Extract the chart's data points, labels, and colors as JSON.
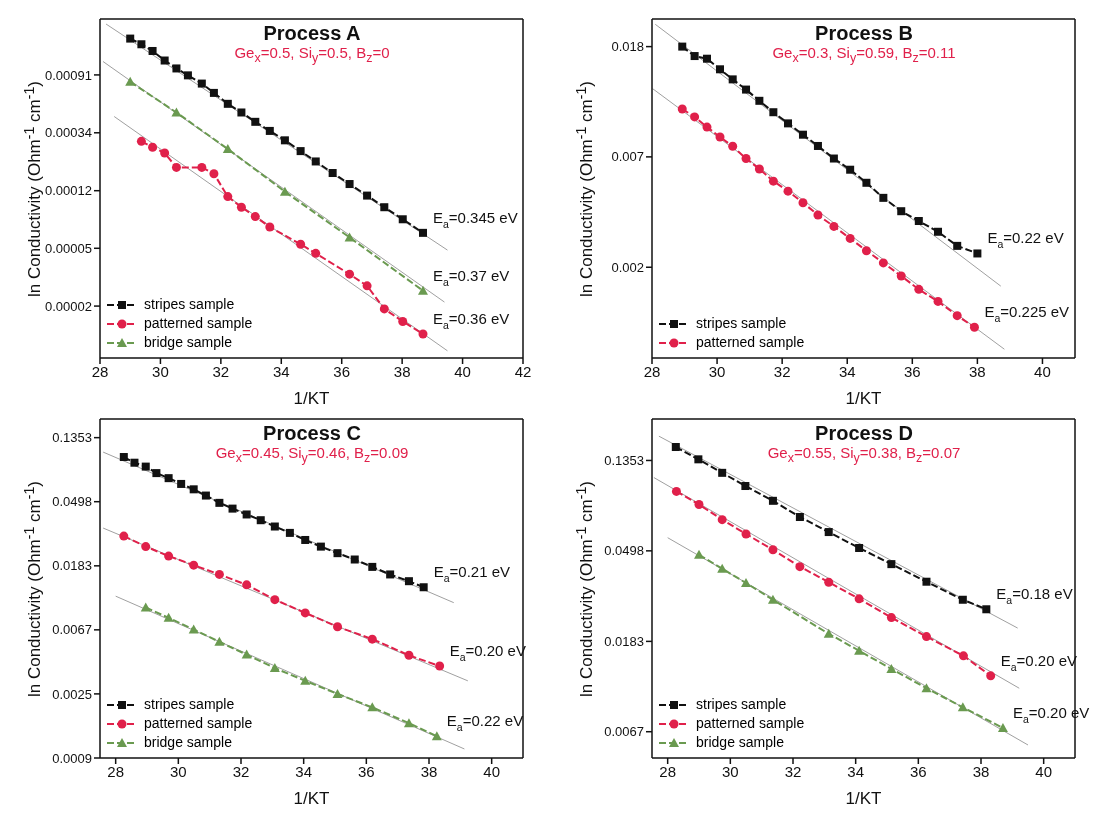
{
  "chart_data": [
    {
      "type": "line",
      "title": "Process  A",
      "subtitle": "Ge$_{x}$=0.5, Si$_{y}$=0.5, B$_{z}$=0",
      "xlabel": "1/KT",
      "ylabel": "ln Conductivity   (Ohm$^{-1}$ cm$^{-1}$)",
      "log": true,
      "xlim": [
        28,
        42
      ],
      "xticks": [
        28,
        30,
        32,
        34,
        36,
        38,
        40,
        42
      ],
      "ylim": [
        6.8e-06,
        0.0024
      ],
      "yticks": [
        {
          "value": 0.000912,
          "label": "0.00091"
        },
        {
          "value": 0.000335,
          "label": "0.00034"
        },
        {
          "value": 0.000123,
          "label": "0.00012"
        },
        {
          "value": 4.54e-05,
          "label": "0.00005"
        },
        {
          "value": 1.67e-05,
          "label": "0.00002"
        }
      ],
      "legend": "bottom left",
      "line_style": "dashed",
      "series": [
        {
          "name": "stripes sample",
          "color": "#111111",
          "marker": "square",
          "x": [
            29.0,
            29.37,
            29.74,
            30.14,
            30.53,
            30.91,
            31.37,
            31.77,
            32.23,
            32.68,
            33.14,
            33.62,
            34.12,
            34.64,
            35.14,
            35.7,
            36.26,
            36.84,
            37.41,
            38.02,
            38.69
          ],
          "values": [
            0.00171,
            0.00155,
            0.00138,
            0.00117,
            0.00102,
            0.000905,
            0.000785,
            0.000668,
            0.000553,
            0.000476,
            0.000405,
            0.000346,
            0.000294,
            0.000244,
            0.000204,
            0.000167,
            0.000138,
            0.000113,
            9.24e-05,
            7.5e-05,
            5.93e-05
          ]
        },
        {
          "name": "patterned sample",
          "color": "#e0204a",
          "marker": "circle",
          "x": [
            29.37,
            29.74,
            30.14,
            30.53,
            31.37,
            31.77,
            32.23,
            32.68,
            33.14,
            33.62,
            34.64,
            35.14,
            36.26,
            36.84,
            37.41,
            38.02,
            38.69
          ],
          "values": [
            0.000289,
            0.000261,
            0.000236,
            0.000184,
            0.000184,
            0.000165,
            0.000111,
            9.24e-05,
            7.86e-05,
            6.56e-05,
            4.87e-05,
            4.16e-05,
            2.9e-05,
            2.37e-05,
            1.59e-05,
            1.28e-05,
            1.03e-05
          ]
        },
        {
          "name": "bridge sample",
          "color": "#6a9a50",
          "marker": "triangle",
          "x": [
            29.0,
            30.53,
            32.23,
            34.12,
            36.26,
            38.69
          ],
          "values": [
            0.000809,
            0.000476,
            0.000253,
            0.000121,
            5.48e-05,
            2.18e-05
          ]
        },
        {
          "type": "line",
          "color": "#a0a0a0",
          "marker": "none",
          "line_style": "solid",
          "x": [
            28.2,
            39.5
          ],
          "values": [
            0.0022,
            4.4e-05
          ]
        },
        {
          "type": "line",
          "color": "#a0a0a0",
          "marker": "none",
          "line_style": "solid",
          "x": [
            28.1,
            39.4
          ],
          "values": [
            0.00115,
            1.79e-05
          ]
        },
        {
          "type": "line",
          "color": "#a0a0a0",
          "marker": "none",
          "line_style": "solid",
          "x": [
            28.47,
            39.5
          ],
          "values": [
            0.000444,
            7.7e-06
          ]
        }
      ],
      "annotations": [
        "E$_{a}$=0.345 eV",
        "E$_{a}$=0.37 eV",
        "E$_{a}$=0.36 eV"
      ]
    },
    {
      "type": "line",
      "title": "Process  B",
      "subtitle": "Ge$_{x}$=0.3, Si$_{y}$=0.59, B$_{z}$=0.11",
      "xlabel": "1/KT",
      "ylabel": "ln Conductivity   (Ohm$^{-1}$ cm$^{-1}$)",
      "log": true,
      "xlim": [
        28,
        41
      ],
      "xticks": [
        28,
        30,
        32,
        34,
        36,
        38,
        40
      ],
      "ylim": [
        0.00109,
        0.0235
      ],
      "yticks": [
        {
          "value": 0.0183,
          "label": "0.018"
        },
        {
          "value": 0.00674,
          "label": "0.007"
        },
        {
          "value": 0.00248,
          "label": "0.002"
        }
      ],
      "legend": "bottom left",
      "line_style": "dashed",
      "series": [
        {
          "name": "stripes sample",
          "color": "#111111",
          "marker": "square",
          "x": [
            28.93,
            29.31,
            29.69,
            30.09,
            30.48,
            30.89,
            31.3,
            31.73,
            32.18,
            32.64,
            33.1,
            33.59,
            34.09,
            34.59,
            35.11,
            35.66,
            36.2,
            36.79,
            37.38,
            38.0
          ],
          "values": [
            0.0183,
            0.0168,
            0.0164,
            0.0149,
            0.0136,
            0.0124,
            0.0112,
            0.0101,
            0.00913,
            0.00824,
            0.00744,
            0.00664,
            0.006,
            0.00533,
            0.00465,
            0.00412,
            0.00377,
            0.00342,
            0.00301,
            0.00281
          ]
        },
        {
          "name": "patterned sample",
          "color": "#e0204a",
          "marker": "circle",
          "x": [
            28.93,
            29.31,
            29.69,
            30.09,
            30.48,
            30.89,
            31.3,
            31.73,
            32.18,
            32.64,
            33.1,
            33.59,
            34.09,
            34.59,
            35.11,
            35.66,
            36.2,
            36.79,
            37.38,
            37.91
          ],
          "values": [
            0.0104,
            0.00968,
            0.00883,
            0.00807,
            0.00742,
            0.00664,
            0.00604,
            0.00541,
            0.00494,
            0.00445,
            0.00398,
            0.00359,
            0.00322,
            0.00288,
            0.00258,
            0.00229,
            0.00203,
            0.00182,
            0.0016,
            0.00144
          ]
        },
        {
          "type": "line",
          "color": "#a0a0a0",
          "marker": "none",
          "line_style": "solid",
          "x": [
            28.1,
            38.72
          ],
          "values": [
            0.0224,
            0.00209
          ]
        },
        {
          "type": "line",
          "color": "#a0a0a0",
          "marker": "none",
          "line_style": "solid",
          "x": [
            28.02,
            38.83
          ],
          "values": [
            0.0125,
            0.00118
          ]
        }
      ],
      "annotations": [
        "E$_{a}$=0.22 eV",
        "E$_{a}$=0.225 eV"
      ]
    },
    {
      "type": "line",
      "title": "Process  C",
      "subtitle": "Ge$_{x}$=0.45, Si$_{y}$=0.46, B$_{z}$=0.09",
      "xlabel": "1/KT",
      "ylabel": "ln Conductivity   (Ohm$^{-1}$ cm$^{-1}$)",
      "log": true,
      "xlim": [
        27.5,
        41
      ],
      "xticks": [
        28,
        30,
        32,
        34,
        36,
        38,
        40
      ],
      "ylim": [
        0.000912,
        0.181
      ],
      "yticks": [
        {
          "value": 0.1353,
          "label": "0.1353"
        },
        {
          "value": 0.0498,
          "label": "0.0498"
        },
        {
          "value": 0.0183,
          "label": "0.0183"
        },
        {
          "value": 0.00674,
          "label": "0.0067"
        },
        {
          "value": 0.00248,
          "label": "0.0025"
        },
        {
          "value": 0.000912,
          "label": "0.0009"
        }
      ],
      "legend": "bottom left",
      "line_style": "dashed",
      "series": [
        {
          "name": "stripes sample",
          "color": "#111111",
          "marker": "square",
          "x": [
            28.26,
            28.6,
            28.96,
            29.3,
            29.69,
            30.09,
            30.49,
            30.88,
            31.31,
            31.73,
            32.18,
            32.63,
            33.08,
            33.56,
            34.05,
            34.55,
            35.08,
            35.63,
            36.19,
            36.76,
            37.36,
            37.83
          ],
          "values": [
            0.1,
            0.0915,
            0.0861,
            0.0778,
            0.0719,
            0.0657,
            0.0604,
            0.0548,
            0.0489,
            0.0447,
            0.0408,
            0.0373,
            0.0338,
            0.0306,
            0.0274,
            0.0247,
            0.0223,
            0.0202,
            0.018,
            0.016,
            0.0144,
            0.0131
          ]
        },
        {
          "name": "patterned sample",
          "color": "#e0204a",
          "marker": "circle",
          "x": [
            28.26,
            28.96,
            29.69,
            30.49,
            31.31,
            32.18,
            33.08,
            34.05,
            35.08,
            36.19,
            37.36,
            38.34
          ],
          "values": [
            0.0291,
            0.0247,
            0.0213,
            0.0185,
            0.016,
            0.0136,
            0.0108,
            0.00878,
            0.00707,
            0.00583,
            0.00453,
            0.00383
          ]
        },
        {
          "name": "bridge sample",
          "color": "#6a9a50",
          "marker": "triangle",
          "x": [
            28.96,
            29.69,
            30.49,
            31.31,
            32.18,
            33.08,
            34.05,
            35.08,
            36.19,
            37.36,
            38.25
          ],
          "values": [
            0.00955,
            0.00813,
            0.00678,
            0.00559,
            0.00458,
            0.00371,
            0.00304,
            0.00248,
            0.00201,
            0.00157,
            0.00128
          ]
        },
        {
          "type": "line",
          "color": "#a0a0a0",
          "marker": "none",
          "line_style": "solid",
          "x": [
            27.6,
            38.79
          ],
          "values": [
            0.108,
            0.0103
          ]
        },
        {
          "type": "line",
          "color": "#a0a0a0",
          "marker": "none",
          "line_style": "solid",
          "x": [
            27.6,
            39.24
          ],
          "values": [
            0.033,
            0.00304
          ]
        },
        {
          "type": "line",
          "color": "#a0a0a0",
          "marker": "none",
          "line_style": "solid",
          "x": [
            28.0,
            39.13
          ],
          "values": [
            0.0114,
            0.00105
          ]
        }
      ],
      "annotations": [
        "E$_{a}$=0.21 eV",
        "E$_{a}$=0.20 eV",
        "E$_{a}$=0.22 eV"
      ]
    },
    {
      "type": "line",
      "title": "Process  D",
      "subtitle": "Ge$_{x}$=0.55, Si$_{y}$=0.38, B$_{z}$=0.07",
      "xlabel": "1/KT",
      "ylabel": "ln Conductivity   (Ohm$^{-1}$ cm$^{-1}$)",
      "log": true,
      "xlim": [
        27.5,
        41
      ],
      "xticks": [
        28,
        30,
        32,
        34,
        36,
        38,
        40
      ],
      "ylim": [
        0.00504,
        0.214
      ],
      "yticks": [
        {
          "value": 0.1353,
          "label": "0.1353"
        },
        {
          "value": 0.0498,
          "label": "0.0498"
        },
        {
          "value": 0.0183,
          "label": "0.0183"
        },
        {
          "value": 0.00674,
          "label": "0.0067"
        }
      ],
      "legend": "bottom left",
      "line_style": "dashed",
      "series": [
        {
          "name": "stripes sample",
          "color": "#111111",
          "marker": "square",
          "x": [
            28.26,
            28.98,
            29.74,
            30.48,
            31.36,
            32.22,
            33.14,
            34.11,
            35.14,
            36.26,
            37.42,
            38.17
          ],
          "values": [
            0.157,
            0.137,
            0.118,
            0.102,
            0.0866,
            0.0724,
            0.0613,
            0.0514,
            0.043,
            0.0354,
            0.029,
            0.0261
          ]
        },
        {
          "name": "patterned sample",
          "color": "#e0204a",
          "marker": "circle",
          "x": [
            28.28,
            29.0,
            29.74,
            30.5,
            31.36,
            32.22,
            33.14,
            34.11,
            35.14,
            36.26,
            37.44,
            38.31
          ],
          "values": [
            0.0961,
            0.0831,
            0.0703,
            0.06,
            0.0504,
            0.0418,
            0.0352,
            0.0293,
            0.0238,
            0.0193,
            0.0156,
            0.0125
          ]
        },
        {
          "name": "bridge sample",
          "color": "#6a9a50",
          "marker": "triangle",
          "x": [
            29.0,
            29.74,
            30.5,
            31.36,
            33.14,
            34.11,
            35.14,
            36.26,
            37.42,
            38.7
          ],
          "values": [
            0.0477,
            0.0409,
            0.0349,
            0.029,
            0.0199,
            0.0165,
            0.0135,
            0.0109,
            0.00883,
            0.00703
          ]
        },
        {
          "type": "line",
          "color": "#a0a0a0",
          "marker": "none",
          "line_style": "solid",
          "x": [
            27.72,
            39.17
          ],
          "values": [
            0.177,
            0.0212
          ]
        },
        {
          "type": "line",
          "color": "#a0a0a0",
          "marker": "none",
          "line_style": "solid",
          "x": [
            27.56,
            39.22
          ],
          "values": [
            0.112,
            0.0109
          ]
        },
        {
          "type": "line",
          "color": "#a0a0a0",
          "marker": "none",
          "line_style": "solid",
          "x": [
            28.0,
            39.5
          ],
          "values": [
            0.0576,
            0.00582
          ]
        }
      ],
      "annotations": [
        "E$_{a}$=0.18 eV",
        "E$_{a}$=0.20 eV",
        "E$_{a}$=0.20 eV"
      ]
    }
  ]
}
